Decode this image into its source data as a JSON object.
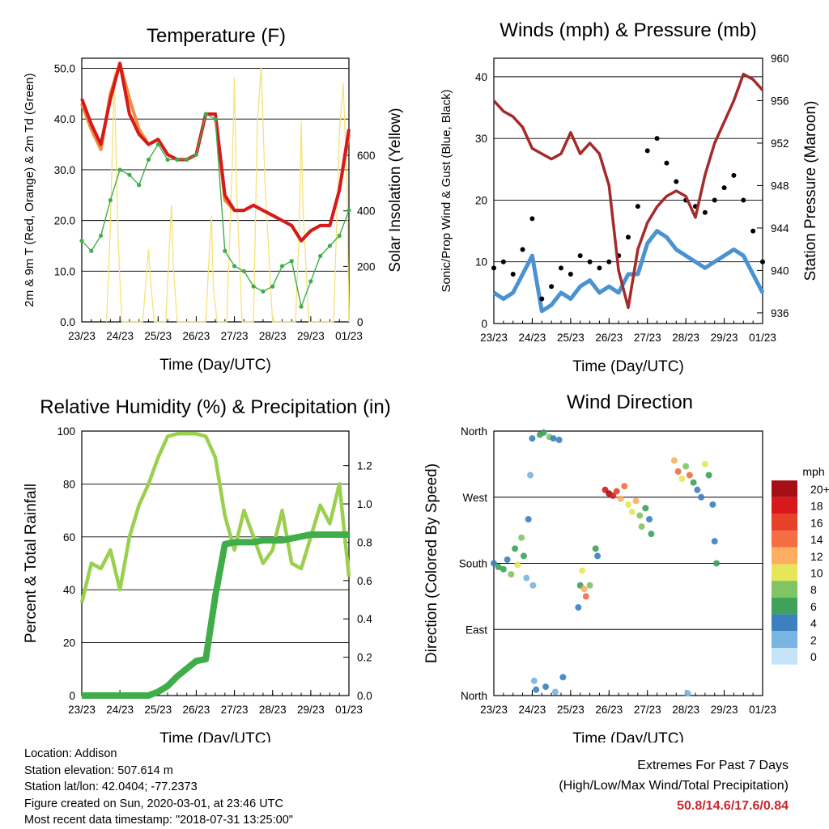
{
  "colors": {
    "temp2m": "#d7191c",
    "temp9m": "#f08c3a",
    "dewpoint": "#3fae49",
    "solar": "#f6e27a",
    "wind": "#4a92d0",
    "gust": "#000000",
    "pressure": "#a52a2a",
    "rh": "#9ad04f",
    "precip": "#3fae49"
  },
  "x_ticks": [
    "23/23",
    "24/23",
    "25/23",
    "26/23",
    "27/23",
    "28/23",
    "29/23",
    "01/23"
  ],
  "chart_data": [
    {
      "type": "line",
      "title": "Temperature (F)",
      "xlabel": "Time (Day/UTC)",
      "ylabel": "2m & 9m T (Red, Orange) & 2m Td (Green)",
      "ylabel_right": "Solar Insolation (Yellow)",
      "ylim": [
        0,
        52
      ],
      "yticks": [
        "0.0",
        "10.0",
        "20.0",
        "30.0",
        "40.0",
        "50.0"
      ],
      "ylim_right": [
        0,
        950
      ],
      "yticks_right": [
        "0",
        "200",
        "400",
        "600"
      ],
      "x": [
        0,
        0.25,
        0.5,
        0.75,
        1,
        1.25,
        1.5,
        1.75,
        2,
        2.25,
        2.5,
        2.75,
        3,
        3.25,
        3.5,
        3.75,
        4,
        4.25,
        4.5,
        4.75,
        5,
        5.25,
        5.5,
        5.75,
        6,
        6.25,
        6.5,
        6.75,
        7
      ],
      "series": [
        {
          "values": [
            44,
            39,
            35,
            44,
            51,
            41,
            37,
            35,
            36,
            33,
            32,
            32,
            33,
            41,
            41,
            25,
            22,
            22,
            23,
            22,
            21,
            20,
            19,
            16,
            18,
            19,
            19,
            26,
            38
          ]
        },
        {
          "values": [
            43,
            38,
            34,
            45,
            51,
            44,
            38,
            35,
            36,
            33,
            32,
            32,
            33,
            41,
            41,
            24,
            22,
            22,
            23,
            22,
            21,
            20,
            19,
            16,
            18,
            19,
            19,
            26,
            37
          ]
        },
        {
          "values": [
            16,
            14,
            17,
            24,
            30,
            29,
            27,
            32,
            35,
            32,
            32,
            32,
            33,
            41,
            40,
            14,
            11,
            10,
            7,
            6,
            7,
            11,
            12,
            3,
            8,
            13,
            15,
            17,
            22
          ]
        },
        {
          "x": [
            0.65,
            0.75,
            0.85,
            0.95,
            1.05,
            1.6,
            1.7,
            1.75,
            1.8,
            1.9,
            2.2,
            2.3,
            2.35,
            2.4,
            2.5,
            3.25,
            3.35,
            3.4,
            3.45,
            3.55,
            3.8,
            3.95,
            4.0,
            4.05,
            4.2,
            4.5,
            4.6,
            4.7,
            4.8,
            5.0,
            5.6,
            5.7,
            5.75,
            5.8,
            5.95,
            6.6,
            6.75,
            6.85,
            6.95,
            7.0
          ],
          "values": [
            0,
            350,
            900,
            300,
            0,
            0,
            180,
            260,
            150,
            0,
            0,
            280,
            420,
            200,
            0,
            0,
            270,
            380,
            120,
            0,
            0,
            600,
            880,
            500,
            0,
            0,
            720,
            920,
            500,
            0,
            0,
            340,
            720,
            400,
            0,
            0,
            680,
            860,
            500,
            0
          ]
        }
      ]
    },
    {
      "type": "scatter",
      "title": "Winds (mph) & Pressure (mb)",
      "xlabel": "Time (Day/UTC)",
      "ylabel": "Sonic/Prop Wind & Gust (Blue, Black)",
      "ylabel_right": "Station Pressure (Maroon)",
      "ylim": [
        0,
        43
      ],
      "yticks": [
        "0",
        "10",
        "20",
        "30",
        "40"
      ],
      "ylim_right": [
        935,
        960
      ],
      "yticks_right": [
        "936",
        "940",
        "944",
        "948",
        "952",
        "956",
        "960"
      ],
      "x": [
        0,
        0.25,
        0.5,
        0.75,
        1,
        1.25,
        1.5,
        1.75,
        2,
        2.25,
        2.5,
        2.75,
        3,
        3.25,
        3.5,
        3.75,
        4,
        4.25,
        4.5,
        4.75,
        5,
        5.25,
        5.5,
        5.75,
        6,
        6.25,
        6.5,
        6.75,
        7
      ],
      "series": [
        {
          "values": [
            5,
            4,
            5,
            8,
            11,
            2,
            3,
            5,
            4,
            6,
            7,
            5,
            6,
            5,
            8,
            8,
            13,
            15,
            14,
            12,
            11,
            10,
            9,
            10,
            11,
            12,
            11,
            8,
            5
          ]
        },
        {
          "values": [
            9,
            10,
            8,
            12,
            17,
            4,
            6,
            9,
            8,
            11,
            10,
            9,
            10,
            11,
            14,
            19,
            28,
            30,
            26,
            23,
            20,
            19,
            18,
            20,
            22,
            24,
            20,
            15,
            10
          ]
        },
        {
          "values": [
            956,
            955,
            954.5,
            953.5,
            951.5,
            951,
            950.5,
            951,
            953,
            951,
            952,
            951,
            948,
            940,
            936.5,
            942,
            944.5,
            946,
            947,
            947.5,
            947,
            945,
            949,
            952,
            954,
            956,
            958.5,
            958,
            957
          ]
        }
      ]
    },
    {
      "type": "line",
      "title": "Relative Humidity (%) & Precipitation (in)",
      "xlabel": "Time (Day/UTC)",
      "ylabel": "Percent & Total Rainfall",
      "ylim": [
        0,
        100
      ],
      "yticks": [
        "0",
        "20",
        "40",
        "60",
        "80",
        "100"
      ],
      "ylim_right": [
        0,
        1.38
      ],
      "yticks_right": [
        "0.0",
        "0.2",
        "0.4",
        "0.6",
        "0.8",
        "1.0",
        "1.2"
      ],
      "x": [
        0,
        0.25,
        0.5,
        0.75,
        1,
        1.25,
        1.5,
        1.75,
        2,
        2.25,
        2.5,
        2.75,
        3,
        3.25,
        3.5,
        3.75,
        4,
        4.25,
        4.5,
        4.75,
        5,
        5.25,
        5.5,
        5.75,
        6,
        6.25,
        6.5,
        6.75,
        7
      ],
      "series": [
        {
          "values": [
            35,
            50,
            48,
            55,
            40,
            60,
            72,
            80,
            90,
            98,
            99,
            99,
            99,
            98,
            90,
            68,
            55,
            70,
            60,
            50,
            55,
            70,
            50,
            48,
            60,
            72,
            65,
            80,
            45
          ]
        },
        {
          "values": [
            0,
            0,
            0,
            0,
            0,
            0,
            0,
            0,
            0.02,
            0.05,
            0.1,
            0.14,
            0.18,
            0.19,
            0.52,
            0.79,
            0.8,
            0.8,
            0.8,
            0.81,
            0.81,
            0.81,
            0.82,
            0.83,
            0.84,
            0.84,
            0.84,
            0.84,
            0.84
          ]
        }
      ]
    },
    {
      "type": "scatter",
      "title": "Wind Direction",
      "xlabel": "Time (Day/UTC)",
      "ylabel": "Direction (Colored By Speed)",
      "ylim": [
        0,
        360
      ],
      "yticks": [
        "North",
        "East",
        "South",
        "West",
        "North"
      ],
      "legend_title": "mph",
      "legend_labels": [
        "20+",
        "18",
        "16",
        "14",
        "12",
        "10",
        "8",
        "6",
        "4",
        "2",
        "0"
      ],
      "legend_colors": [
        "#a50f15",
        "#d7191c",
        "#e8412a",
        "#f46d43",
        "#fdae61",
        "#e6e65a",
        "#7fc465",
        "#3fa15a",
        "#3c80c0",
        "#79b4e3",
        "#c6e4f7"
      ],
      "points": [
        {
          "x": 0.0,
          "y": 180,
          "s": 4
        },
        {
          "x": 0.12,
          "y": 175,
          "s": 6
        },
        {
          "x": 0.25,
          "y": 172,
          "s": 5
        },
        {
          "x": 0.35,
          "y": 185,
          "s": 4
        },
        {
          "x": 0.45,
          "y": 165,
          "s": 7
        },
        {
          "x": 0.55,
          "y": 200,
          "s": 6
        },
        {
          "x": 0.62,
          "y": 178,
          "s": 9
        },
        {
          "x": 0.72,
          "y": 215,
          "s": 8
        },
        {
          "x": 0.78,
          "y": 190,
          "s": 6
        },
        {
          "x": 0.85,
          "y": 160,
          "s": 2
        },
        {
          "x": 0.9,
          "y": 240,
          "s": 4
        },
        {
          "x": 0.95,
          "y": 300,
          "s": 2
        },
        {
          "x": 1.0,
          "y": 350,
          "s": 3
        },
        {
          "x": 1.02,
          "y": 150,
          "s": 1
        },
        {
          "x": 1.05,
          "y": 20,
          "s": 2
        },
        {
          "x": 1.1,
          "y": 8,
          "s": 4
        },
        {
          "x": 1.2,
          "y": 355,
          "s": 5
        },
        {
          "x": 1.3,
          "y": 358,
          "s": 6
        },
        {
          "x": 1.35,
          "y": 12,
          "s": 3
        },
        {
          "x": 1.45,
          "y": 352,
          "s": 7
        },
        {
          "x": 1.55,
          "y": 350,
          "s": 4
        },
        {
          "x": 1.6,
          "y": 5,
          "s": 2
        },
        {
          "x": 1.7,
          "y": 348,
          "s": 3
        },
        {
          "x": 1.8,
          "y": 25,
          "s": 3
        },
        {
          "x": 2.2,
          "y": 120,
          "s": 4
        },
        {
          "x": 2.25,
          "y": 150,
          "s": 6
        },
        {
          "x": 2.3,
          "y": 170,
          "s": 10
        },
        {
          "x": 2.35,
          "y": 145,
          "s": 11
        },
        {
          "x": 2.4,
          "y": 135,
          "s": 13
        },
        {
          "x": 2.5,
          "y": 150,
          "s": 7
        },
        {
          "x": 2.65,
          "y": 200,
          "s": 6
        },
        {
          "x": 2.7,
          "y": 190,
          "s": 4
        },
        {
          "x": 2.9,
          "y": 280,
          "s": 18
        },
        {
          "x": 3.0,
          "y": 275,
          "s": 21
        },
        {
          "x": 3.1,
          "y": 272,
          "s": 17
        },
        {
          "x": 3.2,
          "y": 278,
          "s": 15
        },
        {
          "x": 3.3,
          "y": 268,
          "s": 12
        },
        {
          "x": 3.4,
          "y": 285,
          "s": 14
        },
        {
          "x": 3.5,
          "y": 260,
          "s": 10
        },
        {
          "x": 3.6,
          "y": 250,
          "s": 9
        },
        {
          "x": 3.7,
          "y": 265,
          "s": 11
        },
        {
          "x": 3.8,
          "y": 245,
          "s": 7
        },
        {
          "x": 3.85,
          "y": 230,
          "s": 8
        },
        {
          "x": 3.95,
          "y": 255,
          "s": 6
        },
        {
          "x": 4.05,
          "y": 240,
          "s": 4
        },
        {
          "x": 4.1,
          "y": 220,
          "s": 5
        },
        {
          "x": 4.7,
          "y": 320,
          "s": 12
        },
        {
          "x": 4.8,
          "y": 305,
          "s": 14
        },
        {
          "x": 4.9,
          "y": 295,
          "s": 10
        },
        {
          "x": 5.0,
          "y": 312,
          "s": 8
        },
        {
          "x": 5.1,
          "y": 300,
          "s": 13
        },
        {
          "x": 5.2,
          "y": 290,
          "s": 6
        },
        {
          "x": 5.3,
          "y": 280,
          "s": 4
        },
        {
          "x": 5.4,
          "y": 270,
          "s": 3
        },
        {
          "x": 5.5,
          "y": 315,
          "s": 9
        },
        {
          "x": 5.6,
          "y": 300,
          "s": 5
        },
        {
          "x": 5.7,
          "y": 260,
          "s": 4
        },
        {
          "x": 5.75,
          "y": 210,
          "s": 3
        },
        {
          "x": 5.8,
          "y": 180,
          "s": 5
        },
        {
          "x": 5.05,
          "y": 3,
          "s": 1
        }
      ]
    }
  ],
  "info": {
    "location": "Location: Addison",
    "elevation": "Station elevation: 507.614 m",
    "latlon": "Station lat/lon: 42.0404; -77.2373",
    "created": "Figure created on Sun, 2020-03-01, at 23:46 UTC",
    "recent": "Most recent data timestamp: \"2018-07-31 13:25:00\""
  },
  "extremes": {
    "title": "Extremes For Past 7 Days",
    "subtitle": "(High/Low/Max Wind/Total Precipitation)",
    "values": "50.8/14.6/17.6/0.84"
  }
}
